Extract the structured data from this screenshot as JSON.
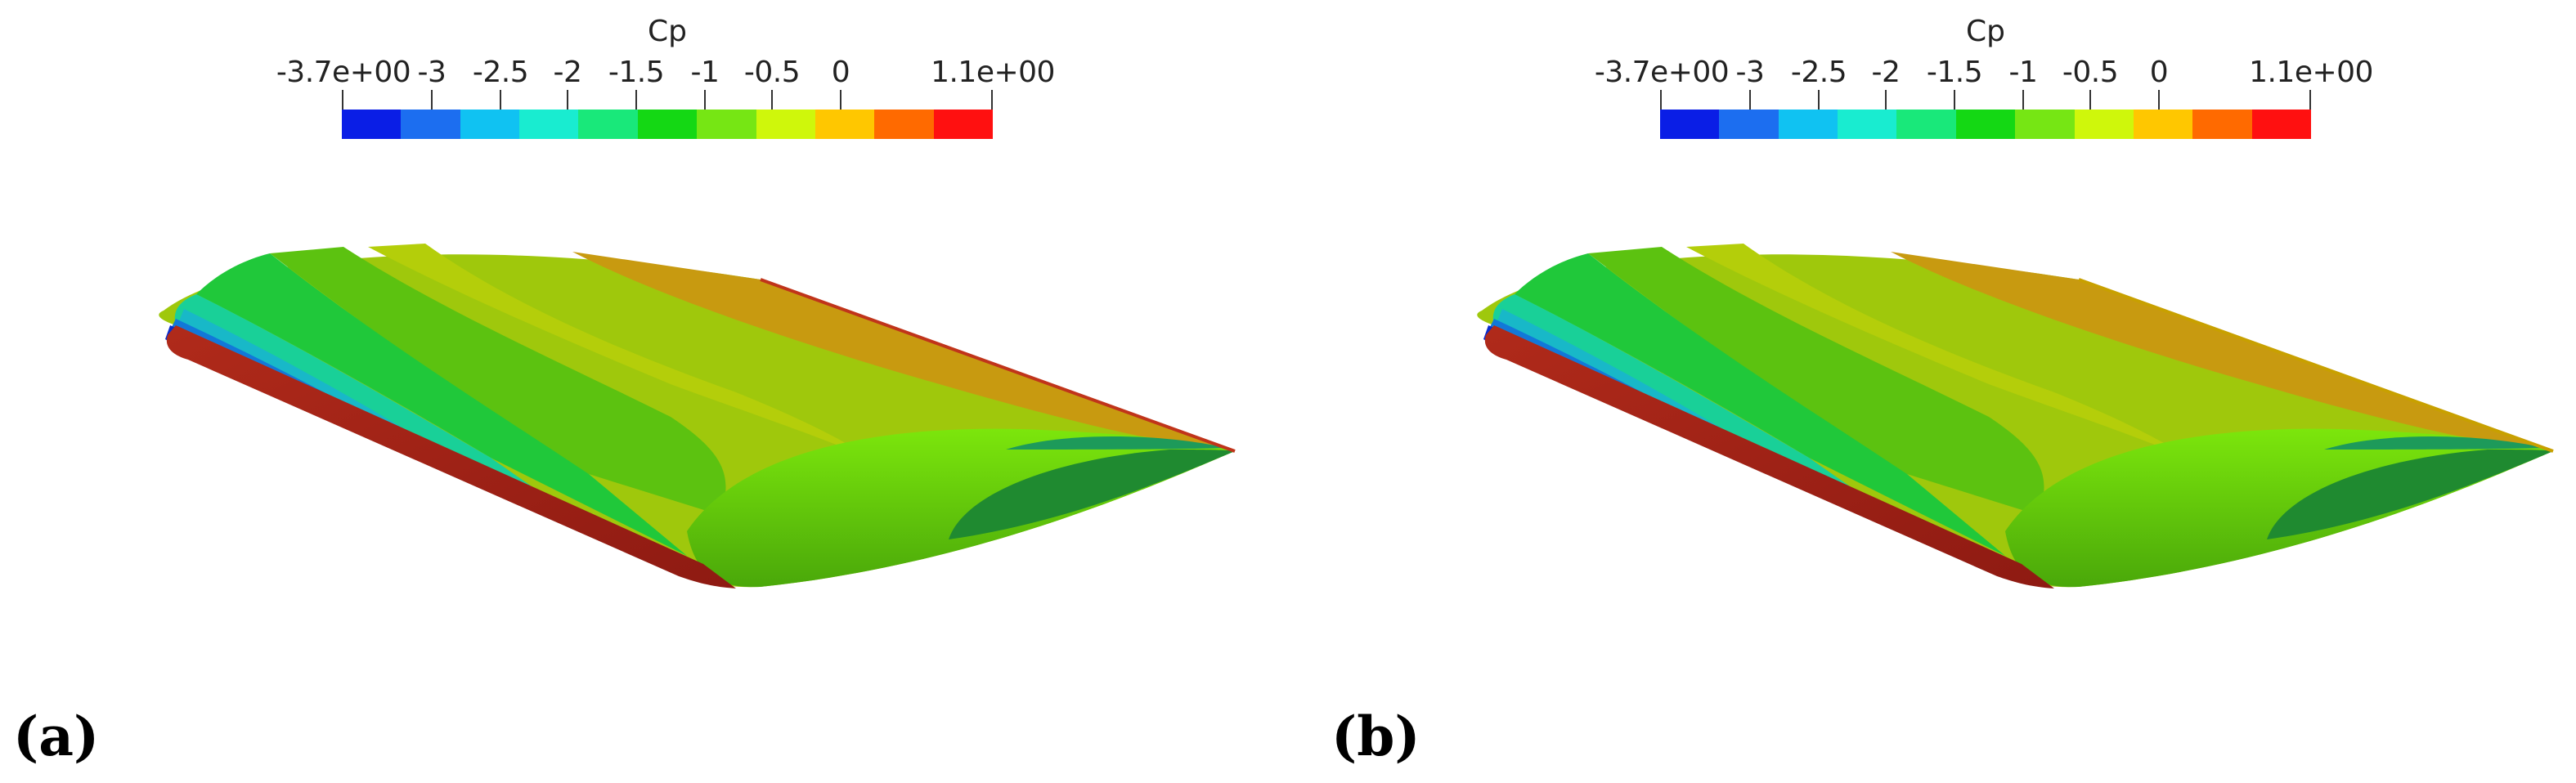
{
  "colorbar": {
    "title": "Cp",
    "tick_labels": [
      "-3.7e+00",
      "-3",
      "-2.5",
      "-2",
      "-1.5",
      "-1",
      "-0.5",
      "0",
      "1.1e+00"
    ],
    "colors": [
      "#0a1ee6",
      "#1c6ef0",
      "#10c2f2",
      "#19ecd0",
      "#19e87a",
      "#14d814",
      "#76e614",
      "#cff70b",
      "#ffc700",
      "#ff6a00",
      "#ff1010"
    ]
  },
  "panels": [
    {
      "label": "(a)",
      "trailing_edge_color": "#c0341a"
    },
    {
      "label": "(b)",
      "trailing_edge_color": "#c8a000"
    }
  ]
}
